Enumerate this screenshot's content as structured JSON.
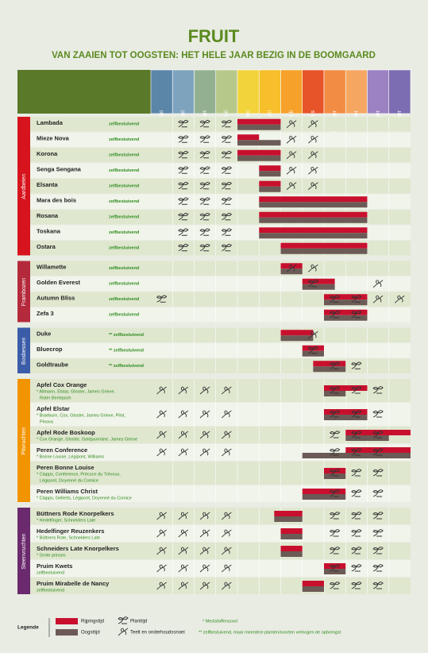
{
  "header": {
    "title": "FRUIT",
    "subtitle": "VAN ZAAIEN TOT OOGSTEN: HET HELE JAAR BEZIG IN DE BOOMGAARD"
  },
  "months": [
    "Januari",
    "Februari",
    "Maart",
    "April",
    "Mei",
    "Juni",
    "Juli",
    "Augustus",
    "September",
    "Oktober",
    "November",
    "December"
  ],
  "month_colors": [
    "#5b86a8",
    "#7ea3bd",
    "#93b191",
    "#b6c98b",
    "#f2d33b",
    "#f6bf2b",
    "#f5a12a",
    "#e8542a",
    "#f28c45",
    "#f5a762",
    "#9c82c2",
    "#7c6cb2"
  ],
  "groups": [
    {
      "name": "Aardbeien",
      "color": "#d7141d",
      "rows": [
        {
          "name": "Lambada",
          "note": "zelfbestuivend",
          "plant": [
            2,
            3,
            4
          ],
          "care": [
            7,
            8
          ],
          "ripe": [
            5,
            7
          ],
          "harvest": [
            5,
            7
          ]
        },
        {
          "name": "Mieze Nova",
          "note": "zelfbestuivend",
          "plant": [
            2,
            3,
            4
          ],
          "care": [
            7,
            8
          ],
          "ripe": [
            5,
            6
          ],
          "harvest": [
            5,
            7
          ]
        },
        {
          "name": "Korona",
          "note": "zelfbestuivend",
          "plant": [
            2,
            3,
            4
          ],
          "care": [
            7,
            8
          ],
          "ripe": [
            5,
            7
          ],
          "harvest": [
            5,
            7
          ]
        },
        {
          "name": "Senga Sengana",
          "note": "zelfbestuivend",
          "plant": [
            2,
            3,
            4
          ],
          "care": [
            7,
            8
          ],
          "ripe": [
            6,
            7
          ],
          "harvest": [
            6,
            7
          ]
        },
        {
          "name": "Elsanta",
          "note": "zelfbestuivend",
          "plant": [
            2,
            3,
            4
          ],
          "care": [
            7,
            8
          ],
          "ripe": [
            6,
            7
          ],
          "harvest": [
            6,
            7
          ]
        },
        {
          "name": "Mara des bois",
          "note": "zelfbestuivend",
          "plant": [
            2,
            3,
            4
          ],
          "ripe": [
            6,
            11
          ],
          "harvest": [
            6,
            11
          ]
        },
        {
          "name": "Rosana",
          "note": "zelfbestuivend",
          "plant": [
            2,
            3,
            4
          ],
          "ripe": [
            6,
            11
          ],
          "harvest": [
            6,
            11
          ]
        },
        {
          "name": "Toskana",
          "note": "zelfbestuivend",
          "plant": [
            2,
            3,
            4
          ],
          "ripe": [
            6,
            11
          ],
          "harvest": [
            6,
            11
          ]
        },
        {
          "name": "Ostara",
          "note": "zelfbestuivend",
          "plant": [
            2,
            3,
            4
          ],
          "ripe": [
            7,
            11
          ],
          "harvest": [
            7,
            11
          ]
        }
      ]
    },
    {
      "name": "Frambozen",
      "color": "#b42a3c",
      "rows": [
        {
          "name": "Willamette",
          "note": "zelfbestuivend",
          "care": [
            7,
            8
          ],
          "ripe": [
            7,
            8
          ],
          "harvest": [
            7,
            8
          ]
        },
        {
          "name": "Golden Everest",
          "note": "zelfbestuivend",
          "plant": [
            8
          ],
          "care": [
            11
          ],
          "ripe": [
            8,
            9.5
          ],
          "harvest": [
            8,
            9.5
          ]
        },
        {
          "name": "Autumn Bliss",
          "note": "zelfbestuivend",
          "plant": [
            1,
            9,
            10
          ],
          "care": [
            11,
            12
          ],
          "ripe": [
            9,
            11
          ],
          "harvest": [
            9,
            11
          ]
        },
        {
          "name": "Zefa 3",
          "note": "zelfbestuivend",
          "plant": [
            9,
            10
          ],
          "ripe": [
            9,
            11
          ],
          "harvest": [
            9,
            11
          ]
        }
      ]
    },
    {
      "name": "Bosbessen",
      "color": "#3b5ca8",
      "rows": [
        {
          "name": "Duke",
          "note": "** zelfbestuivend",
          "care": [
            8
          ],
          "ripe": [
            7,
            8.5
          ],
          "harvest": [
            7,
            8.5
          ]
        },
        {
          "name": "Bluecrop",
          "note": "** zelfbestuivend",
          "plant": [
            8
          ],
          "ripe": [
            8,
            9
          ],
          "harvest": [
            8,
            9
          ]
        },
        {
          "name": "Goldtraube",
          "note": "** zelfbestuivend",
          "plant": [
            9,
            10
          ],
          "ripe": [
            8.5,
            10
          ],
          "harvest": [
            8.5,
            10
          ]
        }
      ]
    },
    {
      "name": "Pitvruchten",
      "color": "#f29400",
      "rows": [
        {
          "name": "Apfel Cox Orange",
          "lines": [
            "* Allmann, Elstar, Gloster, James Grieve,",
            "Roter Berlepsch"
          ],
          "care": [
            1,
            2,
            3,
            4
          ],
          "plant": [
            9,
            10,
            11
          ],
          "ripe": [
            9,
            11
          ],
          "harvest": [
            9,
            10
          ]
        },
        {
          "name": "Apfel Elstar",
          "lines": [
            "* Braeburn, Cox, Gloster, James Grieve, Pilot,",
            "Pinova"
          ],
          "care": [
            1,
            2,
            3,
            4
          ],
          "plant": [
            9,
            10,
            11
          ],
          "ripe": [
            9,
            11
          ],
          "harvest": [
            9,
            11
          ]
        },
        {
          "name": "Apfel Rode Boskoop",
          "lines": [
            "* Cox Orange, Gloster, Goldparmäne, James Grieve"
          ],
          "care": [
            1,
            2,
            3,
            4
          ],
          "plant": [
            9,
            10,
            11
          ],
          "ripe": [
            10,
            13
          ],
          "harvest": [
            10,
            12
          ]
        },
        {
          "name": "Peren Conference",
          "lines": [
            "* Bonne Louise, Légipont, Williams"
          ],
          "care": [
            1,
            2,
            3,
            4
          ],
          "plant": [
            9,
            10,
            11
          ],
          "ripe": [
            10,
            13
          ],
          "harvest": [
            8,
            13
          ]
        },
        {
          "name": "Peren Bonne Louise",
          "lines": [
            "* Clapps, Conference, Précoce du Trévoux,",
            "Légipont, Doyenné du Comice"
          ],
          "plant": [
            9,
            10,
            11
          ],
          "ripe": [
            9,
            10
          ],
          "harvest": [
            9,
            10
          ]
        },
        {
          "name": "Peren Williams Christ",
          "lines": [
            "* Clapps, Gellerts, Légipont, Doyenné du Comice"
          ],
          "plant": [
            9,
            10,
            11
          ],
          "ripe": [
            8,
            10
          ],
          "harvest": [
            8,
            10
          ]
        }
      ]
    },
    {
      "name": "Steenvruchten",
      "color": "#6b2a6e",
      "rows": [
        {
          "name": "Büttners Rode Knorpelkers",
          "lines": [
            "* Hedelfinger, Schneiders Late"
          ],
          "care": [
            1,
            2,
            3,
            4
          ],
          "plant": [
            9,
            10,
            11
          ],
          "ripe": [
            6.7,
            8
          ],
          "harvest": [
            6.7,
            8
          ]
        },
        {
          "name": "Hedelfinger Reuzenkers",
          "lines": [
            "* Büttners Rote, Schneiders Late"
          ],
          "care": [
            1,
            2,
            3,
            4
          ],
          "plant": [
            9,
            10,
            11
          ],
          "ripe": [
            7,
            8
          ],
          "harvest": [
            7,
            8
          ]
        },
        {
          "name": "Schneiders Late Knorpelkers",
          "lines": [
            "* Grote prinses"
          ],
          "care": [
            1,
            2,
            3,
            4
          ],
          "plant": [
            9,
            10,
            11
          ],
          "ripe": [
            7,
            8
          ],
          "harvest": [
            7,
            8
          ]
        },
        {
          "name": "Pruim Kwets",
          "lines": [
            "zelfbestuivend"
          ],
          "care": [
            1,
            2,
            3,
            4
          ],
          "plant": [
            9,
            10,
            11
          ],
          "ripe": [
            9,
            10
          ],
          "harvest": [
            9,
            10
          ]
        },
        {
          "name": "Pruim Mirabelle de Nancy",
          "lines": [
            "zelfbestuivend"
          ],
          "care": [
            1,
            2,
            3,
            4
          ],
          "plant": [
            9,
            10,
            11
          ],
          "ripe": [
            8,
            9
          ],
          "harvest": [
            8,
            9
          ]
        }
      ]
    }
  ],
  "legend": {
    "title": "Legende",
    "ripe": "Rijpingstijd",
    "harvest": "Oogsttijd",
    "plant": "Planttijd",
    "care": "Teelt en onderhoudssnoei",
    "star1": "* Meststoffensoort",
    "star2": "** zelfbestuivend, maar meerdere planten/soorten verhogen de opbrengst"
  }
}
